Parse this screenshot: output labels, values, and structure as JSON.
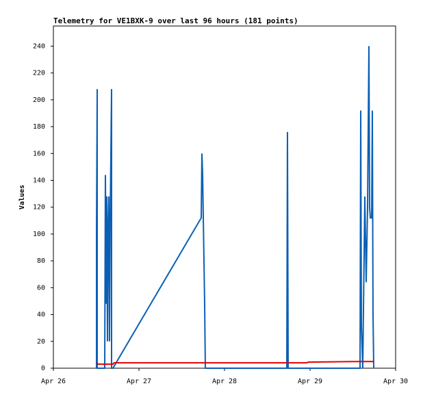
{
  "chart_data": {
    "type": "line",
    "title": "Telemetry for VE1BXK-9 over last 96 hours (181 points)",
    "y_label": "Values",
    "xlim": [
      0,
      96
    ],
    "xticks": [
      {
        "value": 0,
        "label": "Apr 26"
      },
      {
        "value": 24,
        "label": "Apr 27"
      },
      {
        "value": 48,
        "label": "Apr 28"
      },
      {
        "value": 72,
        "label": "Apr 29"
      },
      {
        "value": 96,
        "label": "Apr 30"
      }
    ],
    "ylim": [
      0,
      255
    ],
    "yticks": [
      0,
      20,
      40,
      60,
      80,
      100,
      120,
      140,
      160,
      180,
      200,
      220,
      240
    ],
    "grid": false,
    "series": [
      {
        "color": "#0a5fb4",
        "x": [
          12.1,
          12.1,
          12.29,
          12.29,
          14.4,
          14.59,
          14.78,
          14.98,
          15.17,
          15.36,
          15.55,
          15.74,
          15.94,
          16.32,
          16.32,
          16.7,
          41.47,
          41.66,
          41.86,
          42.24,
          42.43,
          42.62,
          65.47,
          65.66,
          65.86,
          86.02,
          86.21,
          86.4,
          86.78,
          87.36,
          87.55,
          87.74,
          88.13,
          88.51,
          88.7,
          88.9,
          89.28,
          89.47,
          89.66,
          89.86
        ],
        "values": [
          0,
          104,
          208,
          0,
          0,
          144,
          48,
          128,
          20,
          106,
          128,
          20,
          112,
          208,
          0,
          0,
          112,
          160,
          144,
          80,
          48,
          0,
          0,
          176,
          0,
          0,
          192,
          32,
          0,
          128,
          96,
          64,
          120,
          240,
          120,
          112,
          112,
          192,
          40,
          0
        ]
      },
      {
        "color": "#e00000",
        "x": [
          12.1,
          12.5,
          16.7,
          17.0,
          42.6,
          71.0,
          71.5,
          86.0,
          89.9
        ],
        "values": [
          4,
          3,
          3,
          4,
          4,
          4,
          4.5,
          5,
          5
        ]
      }
    ]
  }
}
